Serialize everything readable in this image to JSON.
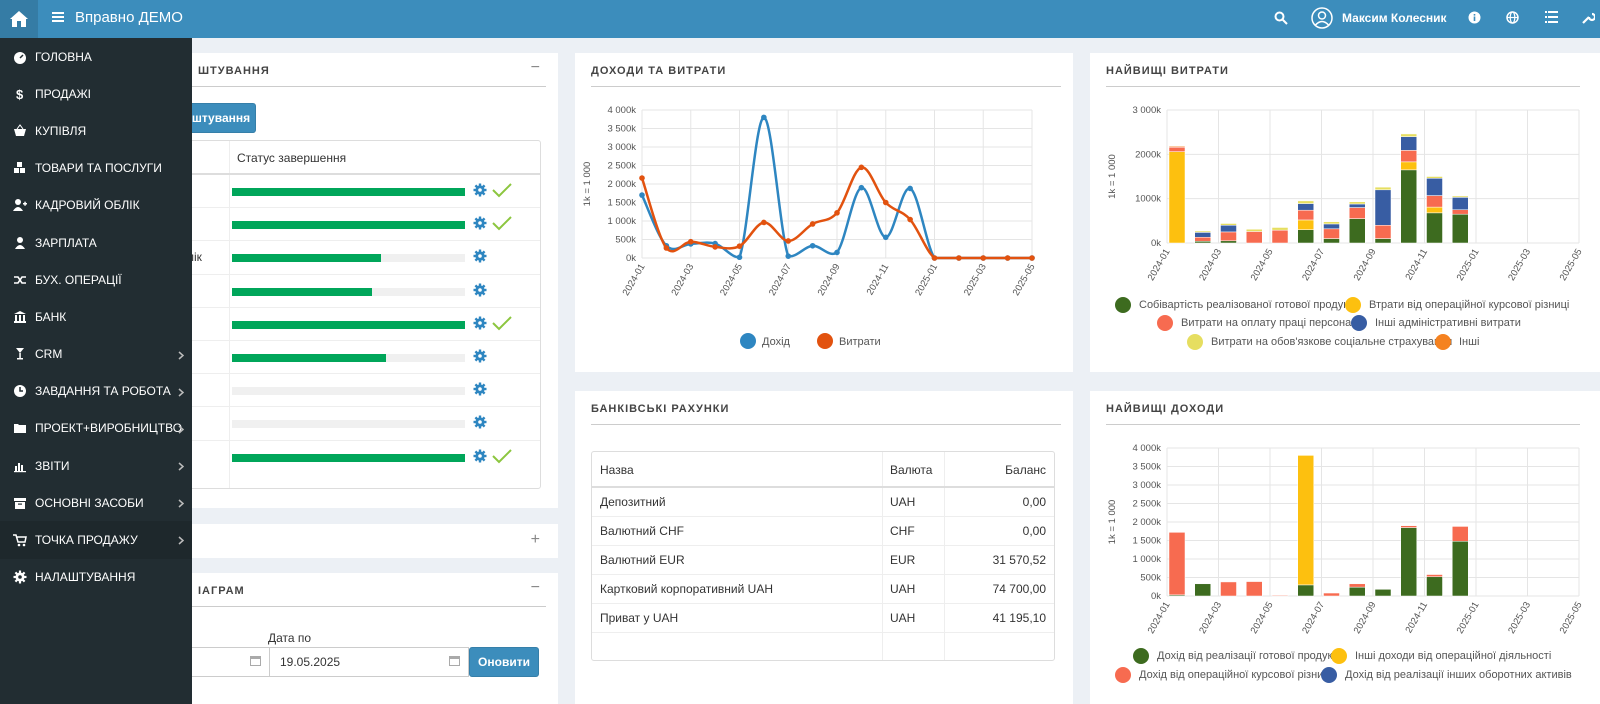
{
  "app": {
    "title": "Вправно ДЕМО",
    "user_name": "Максим Колесник"
  },
  "sidebar": {
    "items": [
      {
        "label": "ГОЛОВНА",
        "icon": "dashboard-icon",
        "submenu": false
      },
      {
        "label": "ПРОДАЖІ",
        "icon": "dollar-icon",
        "submenu": false
      },
      {
        "label": "КУПІВЛЯ",
        "icon": "basket-icon",
        "submenu": false
      },
      {
        "label": "ТОВАРИ ТА ПОСЛУГИ",
        "icon": "cubes-icon",
        "submenu": false
      },
      {
        "label": "КАДРОВИЙ ОБЛІК",
        "icon": "user-plus-icon",
        "submenu": false
      },
      {
        "label": "ЗАРПЛАТА",
        "icon": "user-icon",
        "submenu": false
      },
      {
        "label": "БУХ. ОПЕРАЦІЇ",
        "icon": "random-icon",
        "submenu": false
      },
      {
        "label": "БАНК",
        "icon": "bank-icon",
        "submenu": false
      },
      {
        "label": "CRM",
        "icon": "glass-icon",
        "submenu": true
      },
      {
        "label": "ЗАВДАННЯ ТА РОБОТА",
        "icon": "clock-icon",
        "submenu": true
      },
      {
        "label": "ПРОЕКТ+ВИРОБНИЦТВО",
        "icon": "folder-icon",
        "submenu": true
      },
      {
        "label": "ЗВІТИ",
        "icon": "bar-chart-icon",
        "submenu": true
      },
      {
        "label": "ОСНОВНІ ЗАСОБИ",
        "icon": "archive-icon",
        "submenu": true
      },
      {
        "label": "ТОЧКА ПРОДАЖУ",
        "icon": "cart-icon",
        "submenu": true
      },
      {
        "label": "НАЛАШТУВАННЯ",
        "icon": "cog-icon",
        "submenu": false
      }
    ]
  },
  "setup_panel": {
    "title_visible": "ШТУВАННЯ",
    "button_visible": "штування",
    "status_header": "Статус завершення",
    "partial_row_text": "лік",
    "rows": [
      {
        "progress": 1.0,
        "done": true
      },
      {
        "progress": 1.0,
        "done": true
      },
      {
        "progress": 0.64,
        "done": false
      },
      {
        "progress": 0.6,
        "done": false
      },
      {
        "progress": 1.0,
        "done": true
      },
      {
        "progress": 0.66,
        "done": false
      },
      {
        "progress": 0.0,
        "done": false
      },
      {
        "progress": 0.0,
        "done": false
      },
      {
        "progress": 1.0,
        "done": true
      }
    ]
  },
  "diagram_panel": {
    "title_visible": "ІАГРАМ",
    "date_to_label": "Дата по",
    "date_to_value": "19.05.2025",
    "refresh_label": "Оновити"
  },
  "income_expense": {
    "title": "ДОХОДИ ТА ВИТРАТИ"
  },
  "top_expenses": {
    "title": "НАЙВИЩІ ВИТРАТИ"
  },
  "top_income": {
    "title": "НАЙВИЩІ ДОХОДИ"
  },
  "bank_accounts": {
    "title": "БАНКІВСЬКІ РАХУНКИ",
    "headers": {
      "name": "Назва",
      "currency": "Валюта",
      "balance": "Баланс"
    },
    "rows": [
      {
        "name": "Депозитний",
        "currency": "UAH",
        "balance": "0,00"
      },
      {
        "name": "Валютний CHF",
        "currency": "CHF",
        "balance": "0,00"
      },
      {
        "name": "Валютний EUR",
        "currency": "EUR",
        "balance": "31 570,52"
      },
      {
        "name": "Картковий корпоративний UAH",
        "currency": "UAH",
        "balance": "74 700,00"
      },
      {
        "name": "Приват у UAH",
        "currency": "UAH",
        "balance": "41 195,10"
      }
    ]
  },
  "chart_data": [
    {
      "type": "line",
      "title": "ДОХОДИ ТА ВИТРАТИ",
      "ylabel": "1k = 1 000",
      "ylim": [
        0,
        4000
      ],
      "yticks": [
        "0k",
        "500k",
        "1 000k",
        "1 500k",
        "2 000k",
        "2 500k",
        "3 000k",
        "3 500k",
        "4 000k"
      ],
      "x": [
        "2024-01",
        "2024-02",
        "2024-03",
        "2024-04",
        "2024-05",
        "2024-06",
        "2024-07",
        "2024-08",
        "2024-09",
        "2024-10",
        "2024-11",
        "2024-12",
        "2025-01",
        "2025-02",
        "2025-03",
        "2025-04",
        "2025-05"
      ],
      "xticks": [
        "2024-01",
        "2024-03",
        "2024-05",
        "2024-07",
        "2024-09",
        "2024-11",
        "2025-01",
        "2025-03",
        "2025-05"
      ],
      "series": [
        {
          "name": "Дохід",
          "color": "#2e86c1",
          "values": [
            1700,
            330,
            380,
            390,
            20,
            3800,
            50,
            330,
            150,
            1900,
            560,
            1880,
            0,
            0,
            0,
            0,
            0
          ]
        },
        {
          "name": "Витрати",
          "color": "#e2520f",
          "values": [
            2160,
            270,
            440,
            300,
            320,
            960,
            460,
            920,
            1220,
            2450,
            1500,
            1040,
            0,
            0,
            0,
            0,
            0
          ]
        }
      ],
      "grid": true,
      "legend": "bottom"
    },
    {
      "type": "bar",
      "stacked": true,
      "title": "НАЙВИЩІ ВИТРАТИ",
      "ylabel": "1k = 1 000",
      "ylim": [
        0,
        3000
      ],
      "yticks": [
        "0k",
        "1000k",
        "2000k",
        "3 000k"
      ],
      "categories": [
        "2024-01",
        "2024-02",
        "2024-03",
        "2024-04",
        "2024-05",
        "2024-06",
        "2024-07",
        "2024-08",
        "2024-09",
        "2024-10",
        "2024-11",
        "2024-12",
        "2025-01",
        "2025-02",
        "2025-03",
        "2025-04",
        "2025-05"
      ],
      "xticks": [
        "2024-01",
        "2024-03",
        "2024-05",
        "2024-07",
        "2024-09",
        "2024-11",
        "2025-01",
        "2025-03",
        "2025-05"
      ],
      "series": [
        {
          "name": "Собівартість реалізованої готової продукції",
          "color": "#3d6b1f",
          "values": [
            0,
            40,
            50,
            0,
            0,
            300,
            100,
            550,
            100,
            1650,
            680,
            650,
            0,
            0,
            0,
            0,
            0
          ]
        },
        {
          "name": "Втрати від операційної курсової різниці",
          "color": "#fdc00f",
          "values": [
            2060,
            0,
            0,
            0,
            0,
            220,
            0,
            0,
            0,
            180,
            130,
            0,
            0,
            0,
            0,
            0,
            0
          ]
        },
        {
          "name": "Витрати на оплату праці персоналу",
          "color": "#f76b50",
          "values": [
            100,
            90,
            200,
            260,
            290,
            220,
            220,
            250,
            300,
            260,
            260,
            100,
            0,
            0,
            0,
            0,
            0
          ]
        },
        {
          "name": "Інші адміністративні витрати",
          "color": "#385da3",
          "values": [
            0,
            110,
            150,
            0,
            0,
            150,
            110,
            80,
            800,
            310,
            390,
            280,
            0,
            0,
            0,
            0,
            0
          ]
        },
        {
          "name": "Витрати на обов'язкове соціальне страхування",
          "color": "#e6de60",
          "values": [
            0,
            30,
            40,
            50,
            60,
            60,
            50,
            50,
            60,
            60,
            40,
            30,
            0,
            0,
            0,
            0,
            0
          ]
        },
        {
          "name": "Інші",
          "color": "#f58220",
          "values": [
            20,
            0,
            0,
            0,
            0,
            0,
            0,
            0,
            0,
            0,
            0,
            0,
            0,
            0,
            0,
            0,
            0
          ]
        }
      ],
      "grid": true,
      "legend": "bottom"
    },
    {
      "type": "bar",
      "stacked": true,
      "title": "НАЙВИЩІ ДОХОДИ",
      "ylabel": "1k = 1 000",
      "ylim": [
        0,
        4000
      ],
      "yticks": [
        "0k",
        "500k",
        "1 000k",
        "1 500k",
        "2 000k",
        "2 500k",
        "3 000k",
        "3 500k",
        "4 000k"
      ],
      "categories": [
        "2024-01",
        "2024-02",
        "2024-03",
        "2024-04",
        "2024-05",
        "2024-06",
        "2024-07",
        "2024-08",
        "2024-09",
        "2024-10",
        "2024-11",
        "2024-12",
        "2025-01",
        "2025-02",
        "2025-03",
        "2025-04",
        "2025-05"
      ],
      "xticks": [
        "2024-01",
        "2024-03",
        "2024-05",
        "2024-07",
        "2024-09",
        "2024-11",
        "2025-01",
        "2025-03",
        "2025-05"
      ],
      "series": [
        {
          "name": "Дохід від реалізації готової продукції",
          "color": "#3d6b1f",
          "values": [
            30,
            330,
            0,
            0,
            0,
            300,
            0,
            240,
            180,
            1850,
            520,
            1480,
            0,
            0,
            0,
            0,
            0
          ]
        },
        {
          "name": "Інші доходи від операційної діяльності",
          "color": "#fdc00f",
          "values": [
            0,
            0,
            0,
            0,
            0,
            3500,
            0,
            0,
            0,
            0,
            0,
            0,
            0,
            0,
            0,
            0,
            0
          ]
        },
        {
          "name": "Дохід від операційної курсової різниці",
          "color": "#f76b50",
          "values": [
            1690,
            0,
            380,
            390,
            20,
            0,
            80,
            90,
            0,
            50,
            60,
            400,
            0,
            0,
            0,
            0,
            0
          ]
        },
        {
          "name": "Дохід від реалізації інших оборотних активів",
          "color": "#385da3",
          "values": [
            0,
            0,
            0,
            0,
            0,
            0,
            0,
            0,
            0,
            0,
            0,
            0,
            0,
            0,
            0,
            0,
            0
          ]
        }
      ],
      "grid": true,
      "legend": "bottom"
    }
  ]
}
